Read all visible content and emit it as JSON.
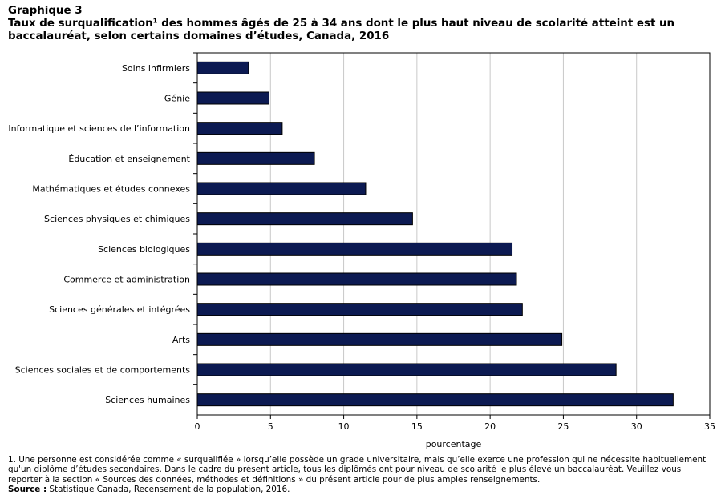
{
  "header": {
    "label": "Graphique  3",
    "title_line1": "Taux de surqualification¹  des hommes âgés de 25 à 34 ans dont le plus haut niveau de scolarité atteint est un",
    "title_line2": "baccalauréat, selon certains domaines d’études, Canada, 2016"
  },
  "chart_data": {
    "type": "bar",
    "orientation": "horizontal",
    "title": "Taux de surqualification¹  des hommes âgés de 25 à 34 ans dont le plus haut niveau de scolarité atteint est un baccalauréat, selon certains domaines d’études, Canada, 2016",
    "xlabel": "pourcentage",
    "ylabel": "",
    "xlim": [
      0,
      35
    ],
    "ticks": [
      0,
      5,
      10,
      15,
      20,
      25,
      30,
      35
    ],
    "grid": true,
    "legend": "none",
    "bar_color": "#0c1a52",
    "categories": [
      "Soins infirmiers",
      "Génie",
      "Informatique et sciences de l’information",
      "Éducation et enseignement",
      "Mathématiques et études connexes",
      "Sciences physiques et chimiques",
      "Sciences biologiques",
      "Commerce et administration",
      "Sciences générales et intégrées",
      "Arts",
      "Sciences sociales et de comportements",
      "Sciences humaines"
    ],
    "values": [
      3.5,
      4.9,
      5.8,
      8.0,
      11.5,
      14.7,
      21.5,
      21.8,
      22.2,
      24.9,
      28.6,
      32.5
    ]
  },
  "footnotes": {
    "note1": "1. Une personne est considérée comme « surqualifiée » lorsqu’elle possède un grade universitaire, mais qu’elle exerce une profession qui ne nécessite habituellement qu'un diplôme d’études secondaires. Dans le cadre du présent article, tous les diplômés ont pour niveau de scolarité le plus élevé un baccalauréat. Veuillez vous reporter à la section « Sources des données, méthodes et définitions » du présent article pour de plus amples renseignements.",
    "source_label": "Source :",
    "source_text": " Statistique Canada, Recensement de la population, 2016."
  }
}
